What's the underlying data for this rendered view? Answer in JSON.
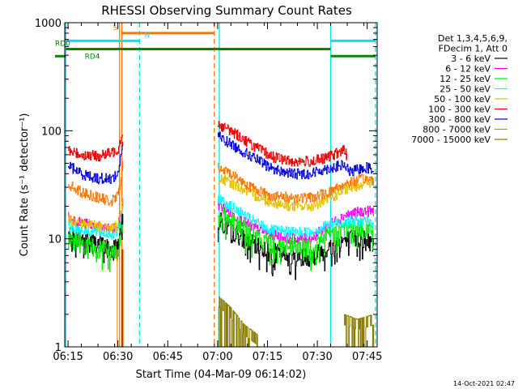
{
  "chart_data": {
    "type": "line",
    "title": "RHESSI Observing Summary Count Rates",
    "xlabel": "Start Time (04-Mar-09 06:14:02)",
    "ylabel": "Count Rate (s⁻¹ detector⁻¹)",
    "x_tick_labels": [
      "06:15",
      "06:30",
      "06:45",
      "07:00",
      "07:15",
      "07:30",
      "07:45"
    ],
    "x_tick_minutes": [
      1,
      16,
      31,
      46,
      61,
      76,
      91
    ],
    "xlim_minutes": [
      0,
      94
    ],
    "y_scale": "log",
    "ylim": [
      1,
      1000
    ],
    "y_tick_labels": [
      "1",
      "10",
      "100",
      "1000"
    ],
    "y_tick_values": [
      1,
      10,
      100,
      1000
    ],
    "legend": {
      "header": [
        "Det 1,3,4,5,6,9,",
        "FDecim 1, Att 0"
      ],
      "placement": "right"
    },
    "footer_date": "14-Oct-2021 02:47",
    "colors": {
      "3-6": "#000000",
      "6-12": "#ff00ff",
      "12-25": "#00ee00",
      "25-50": "#00ffff",
      "50-100": "#e6c000",
      "100-300": "#ee0000",
      "300-800": "#0000dd",
      "800-7000": "#ff7700",
      "7000-15000": "#8b7d00",
      "flags_cyan": "#00e5ee",
      "flags_green": "#008800"
    },
    "series": [
      {
        "name": "3 - 6 keV",
        "key": "3-6",
        "segments": [
          [
            [
              1,
              11
            ],
            [
              5,
              10
            ],
            [
              10,
              9
            ],
            [
              14,
              8
            ],
            [
              16,
              8.5
            ],
            [
              17.5,
              17
            ]
          ],
          [
            [
              46,
              15
            ],
            [
              50,
              12
            ],
            [
              56,
              9
            ],
            [
              62,
              7.5
            ],
            [
              68,
              6.8
            ],
            [
              74,
              6.8
            ],
            [
              78,
              7.8
            ],
            [
              84,
              9.8
            ],
            [
              90,
              10
            ],
            [
              93,
              9
            ]
          ]
        ]
      },
      {
        "name": "6 - 12 keV",
        "key": "6-12",
        "segments": [
          [
            [
              1,
              16
            ],
            [
              5,
              14
            ],
            [
              10,
              13
            ],
            [
              14,
              12
            ],
            [
              16,
              13
            ],
            [
              17.5,
              22
            ]
          ],
          [
            [
              46,
              21
            ],
            [
              50,
              17
            ],
            [
              56,
              13
            ],
            [
              62,
              11
            ],
            [
              68,
              10
            ],
            [
              74,
              10
            ],
            [
              78,
              12.5
            ],
            [
              84,
              16.5
            ],
            [
              90,
              18
            ],
            [
              93,
              18
            ]
          ]
        ]
      },
      {
        "name": "12 - 25 keV",
        "key": "12-25",
        "segments": [
          [
            [
              1,
              10
            ],
            [
              5,
              9
            ],
            [
              10,
              8
            ],
            [
              14,
              7.5
            ],
            [
              16,
              8
            ],
            [
              17.5,
              15
            ]
          ],
          [
            [
              46,
              17
            ],
            [
              50,
              15
            ],
            [
              56,
              11
            ],
            [
              62,
              9
            ],
            [
              68,
              8.3
            ],
            [
              74,
              8.3
            ],
            [
              78,
              10
            ],
            [
              84,
              12.5
            ],
            [
              90,
              12.5
            ],
            [
              93,
              12
            ]
          ]
        ]
      },
      {
        "name": "25 - 50 keV",
        "key": "25-50",
        "segments": [
          [
            [
              1,
              13
            ],
            [
              5,
              12
            ],
            [
              10,
              11.5
            ],
            [
              14,
              11
            ],
            [
              16,
              11.5
            ],
            [
              17.5,
              19
            ]
          ],
          [
            [
              46,
              24
            ],
            [
              50,
              20
            ],
            [
              56,
              15
            ],
            [
              62,
              12
            ],
            [
              68,
              11.5
            ],
            [
              74,
              11.5
            ],
            [
              78,
              13
            ],
            [
              84,
              14.5
            ],
            [
              90,
              14.5
            ],
            [
              93,
              14
            ]
          ]
        ]
      },
      {
        "name": "50 - 100 keV",
        "key": "50-100",
        "segments": [
          [
            [
              1,
              15
            ],
            [
              5,
              14
            ],
            [
              10,
              13
            ],
            [
              14,
              12.5
            ],
            [
              16,
              13
            ],
            [
              17.5,
              24
            ]
          ],
          [
            [
              46,
              36
            ],
            [
              50,
              33
            ],
            [
              56,
              26
            ],
            [
              62,
              22
            ],
            [
              68,
              20
            ],
            [
              74,
              20
            ],
            [
              78,
              22
            ],
            [
              84,
              28
            ],
            [
              90,
              33
            ],
            [
              93,
              33
            ]
          ]
        ]
      },
      {
        "name": "100 - 300 keV",
        "key": "100-300",
        "segments": [
          [
            [
              1,
              65
            ],
            [
              5,
              60
            ],
            [
              10,
              58
            ],
            [
              14,
              62
            ],
            [
              16,
              68
            ],
            [
              17.5,
              100
            ]
          ],
          [
            [
              46,
              115
            ],
            [
              50,
              100
            ],
            [
              56,
              75
            ],
            [
              62,
              58
            ],
            [
              68,
              52
            ],
            [
              74,
              52
            ],
            [
              78,
              55
            ],
            [
              84,
              66
            ],
            [
              85,
              58
            ]
          ]
        ]
      },
      {
        "name": "300 - 800 keV",
        "key": "300-800",
        "segments": [
          [
            [
              1,
              48
            ],
            [
              5,
              40
            ],
            [
              10,
              36
            ],
            [
              14,
              36
            ],
            [
              16,
              40
            ],
            [
              17.5,
              80
            ]
          ],
          [
            [
              46,
              90
            ],
            [
              50,
              75
            ],
            [
              56,
              58
            ],
            [
              62,
              45
            ],
            [
              68,
              40
            ],
            [
              74,
              40
            ],
            [
              78,
              44
            ],
            [
              84,
              48
            ],
            [
              86,
              41
            ],
            [
              90,
              46
            ],
            [
              93,
              44
            ]
          ]
        ]
      },
      {
        "name": "800 - 7000 keV",
        "key": "800-7000",
        "segments": [
          [
            [
              1,
              32
            ],
            [
              5,
              27
            ],
            [
              10,
              24
            ],
            [
              14,
              22
            ],
            [
              16,
              25
            ],
            [
              17.5,
              50
            ]
          ],
          [
            [
              46,
              45
            ],
            [
              50,
              40
            ],
            [
              56,
              30
            ],
            [
              62,
              25
            ],
            [
              68,
              24
            ],
            [
              74,
              24
            ],
            [
              78,
              26
            ],
            [
              84,
              32
            ],
            [
              90,
              36
            ],
            [
              93,
              35
            ]
          ]
        ]
      },
      {
        "name": "7000 - 15000 keV",
        "key": "7000-15000",
        "segments": [
          [
            [
              46,
              3.0
            ],
            [
              50,
              2.3
            ],
            [
              54,
              1.6
            ],
            [
              58,
              1.3
            ]
          ],
          [
            [
              84,
              2
            ],
            [
              88,
              1.8
            ],
            [
              93,
              2
            ]
          ]
        ]
      }
    ],
    "vertical_lines": [
      {
        "minute": 0.3,
        "color": "#00e5ee",
        "style": "solid"
      },
      {
        "minute": 16.5,
        "color": "#ff7700",
        "style": "solid"
      },
      {
        "minute": 17.2,
        "color": "#ff7700",
        "style": "solid"
      },
      {
        "minute": 22.5,
        "color": "#00e5ee",
        "style": "dashed"
      },
      {
        "minute": 45.0,
        "color": "#ff7700",
        "style": "dashed"
      },
      {
        "minute": 46.5,
        "color": "#00e5ee",
        "style": "solid"
      },
      {
        "minute": 80.0,
        "color": "#00e5ee",
        "style": "solid"
      },
      {
        "minute": 93.5,
        "color": "#00e5ee",
        "style": "dashed"
      }
    ],
    "flag_bars": [
      {
        "label": "S",
        "label_at": 14.5,
        "x0": 17.2,
        "x1": 45.0,
        "y": 800,
        "color": "#ff7700"
      },
      {
        "label": "N",
        "label_at": 24,
        "x0": 0.3,
        "x1": 22.5,
        "y": 680,
        "color": "#00e5ee"
      },
      {
        "label": "",
        "label_at": null,
        "x0": 80,
        "x1": 93.5,
        "y": 680,
        "color": "#00e5ee"
      },
      {
        "label": "RD0",
        "label_at": -3.5,
        "x0": 0.3,
        "x1": 80,
        "y": 570,
        "color": "#008800"
      },
      {
        "label": "RD4",
        "label_at": 6,
        "x0": -3,
        "x1": 0.3,
        "y": 490,
        "color": "#008800"
      },
      {
        "label": "",
        "label_at": null,
        "x0": 80,
        "x1": 93.5,
        "y": 490,
        "color": "#008800"
      }
    ]
  }
}
